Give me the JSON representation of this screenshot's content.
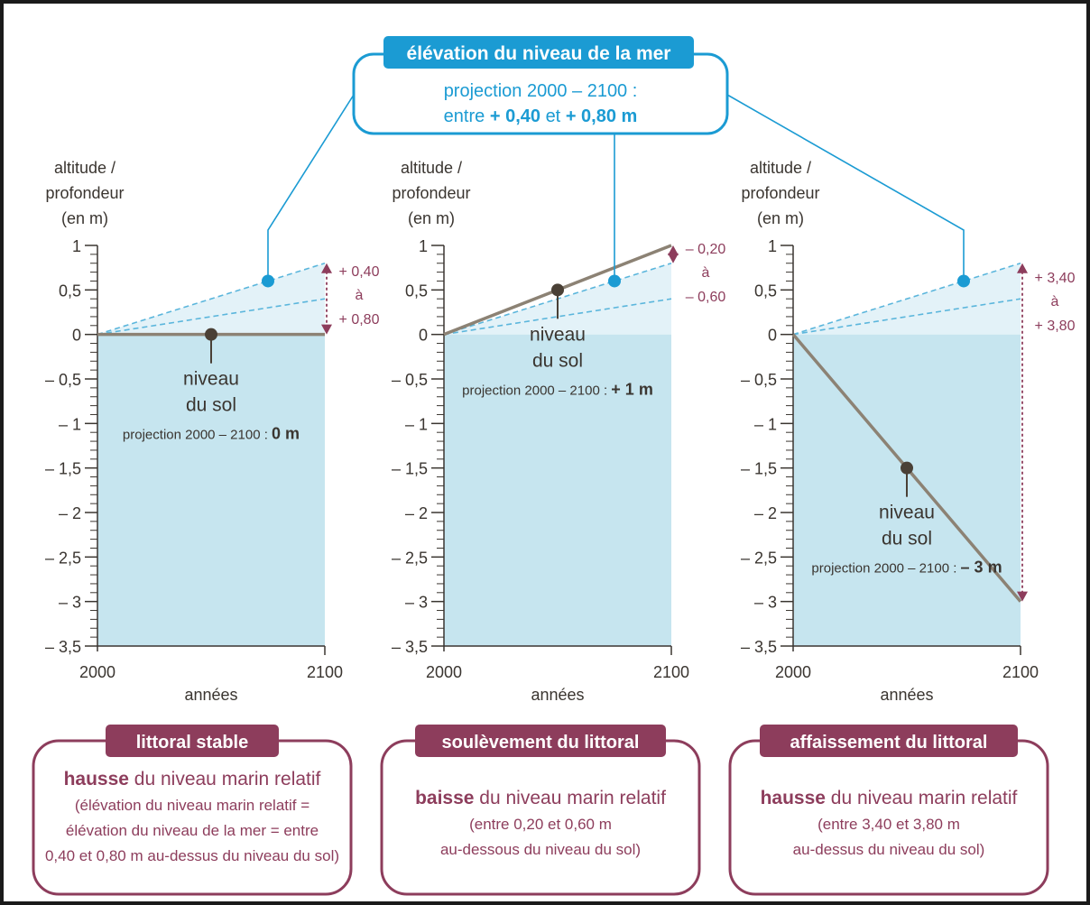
{
  "header": {
    "title": "élévation du niveau de la mer",
    "subtitle_line1": "projection 2000 – 2100 :",
    "subtitle_line2_prefix": "entre",
    "subtitle_low": "+ 0,40",
    "subtitle_line2_mid": "et",
    "subtitle_high": "+ 0,80 m"
  },
  "axes_common": {
    "ylabel_line1": "altitude /",
    "ylabel_line2": "profondeur",
    "ylabel_line3": "(en m)",
    "xlabel": "années",
    "x_tick_labels": [
      "2000",
      "2100"
    ],
    "y_tick_labels": [
      "1",
      "0,5",
      "0",
      "– 0,5",
      "– 1",
      "– 1,5",
      "– 2",
      "– 2,5",
      "– 3",
      "– 3,5"
    ],
    "y_tick_values": [
      1,
      0.5,
      0,
      -0.5,
      -1,
      -1.5,
      -2,
      -2.5,
      -3,
      -3.5
    ],
    "ylim": [
      -3.5,
      1
    ],
    "xlim": [
      2000,
      2100
    ]
  },
  "colors": {
    "frame": "#1a1a1a",
    "accent_blue": "#1b9bd3",
    "sea_fill": "#c6e5ef",
    "sea_band": "#e3f2f8",
    "dashed": "#5bb6dc",
    "ground_line": "#8c8274",
    "ground_point": "#4a4036",
    "text_dark": "#3a3530",
    "maroon": "#8d3d5c",
    "maroon_box_text": "#8d3d5c"
  },
  "chart_data": [
    {
      "type": "line",
      "series": [
        {
          "name": "niveau du sol",
          "x": [
            2000,
            2100
          ],
          "values": [
            0,
            0
          ]
        },
        {
          "x": [
            2000,
            2100
          ],
          "values": [
            0,
            0.4
          ]
        },
        {
          "x": [
            2000,
            2100
          ],
          "values": [
            0,
            0.8
          ]
        }
      ],
      "ground_point": {
        "x": 2050,
        "y": 0
      },
      "sea_point": {
        "x": 2075,
        "y": 0.6
      },
      "annotation": {
        "top": "+ 0,40",
        "mid": "à",
        "bottom": "+ 0,80"
      },
      "label_line1": "niveau",
      "label_line2": "du sol",
      "projection_prefix": "projection 2000 – 2100 :",
      "projection_value": "0 m",
      "panel_title": "littoral stable",
      "box_bold": "hausse",
      "box_rest": "du niveau marin relatif",
      "box_lines": [
        "(élévation du niveau marin relatif =",
        "élévation du niveau de la mer = entre",
        "0,40 et 0,80 m au-dessus du niveau du sol)"
      ]
    },
    {
      "type": "line",
      "series": [
        {
          "name": "niveau du sol",
          "x": [
            2000,
            2100
          ],
          "values": [
            0,
            1
          ]
        },
        {
          "x": [
            2000,
            2100
          ],
          "values": [
            0,
            0.4
          ]
        },
        {
          "x": [
            2000,
            2100
          ],
          "values": [
            0,
            0.8
          ]
        }
      ],
      "ground_point": {
        "x": 2050,
        "y": 0.5
      },
      "sea_point": {
        "x": 2075,
        "y": 0.6
      },
      "annotation": {
        "top": "– 0,20",
        "mid": "à",
        "bottom": "– 0,60"
      },
      "label_line1": "niveau",
      "label_line2": "du sol",
      "projection_prefix": "projection 2000 – 2100 :",
      "projection_value": "+ 1 m",
      "panel_title": "soulèvement du littoral",
      "box_bold": "baisse",
      "box_rest": "du niveau marin relatif",
      "box_lines": [
        "(entre 0,20 et 0,60 m",
        "au-dessous du niveau du sol)"
      ]
    },
    {
      "type": "line",
      "series": [
        {
          "name": "niveau du sol",
          "x": [
            2000,
            2100
          ],
          "values": [
            0,
            -3
          ]
        },
        {
          "x": [
            2000,
            2100
          ],
          "values": [
            0,
            0.4
          ]
        },
        {
          "x": [
            2000,
            2100
          ],
          "values": [
            0,
            0.8
          ]
        }
      ],
      "ground_point": {
        "x": 2050,
        "y": -1.5
      },
      "sea_point": {
        "x": 2075,
        "y": 0.6
      },
      "annotation": {
        "top": "+ 3,40",
        "mid": "à",
        "bottom": "+ 3,80"
      },
      "label_line1": "niveau",
      "label_line2": "du sol",
      "projection_prefix": "projection 2000 – 2100 :",
      "projection_value": "– 3 m",
      "panel_title": "affaissement du littoral",
      "box_bold": "hausse",
      "box_rest": "du niveau marin relatif",
      "box_lines": [
        "(entre 3,40 et 3,80 m",
        "au-dessus du niveau du sol)"
      ]
    }
  ]
}
